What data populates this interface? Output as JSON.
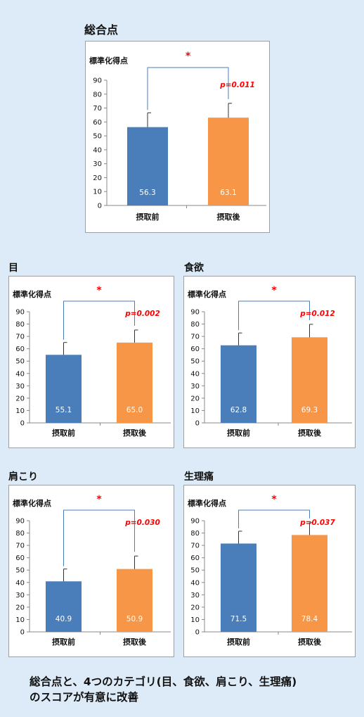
{
  "colors": {
    "before": "#4a7ebb",
    "after": "#f79646",
    "bracket": "#4a7ebb",
    "significance": "#ff0000",
    "axis": "#888888"
  },
  "chart_data": [
    {
      "type": "bar",
      "title": "総合点",
      "ylabel": "標準化得点",
      "categories": [
        "摂取前",
        "摂取後"
      ],
      "values": [
        56.3,
        63.1
      ],
      "error": [
        10.3,
        10.3
      ],
      "ylim": [
        0,
        90
      ],
      "yticks": [
        0,
        10,
        20,
        30,
        40,
        50,
        60,
        70,
        80,
        90
      ],
      "significance_mark": "*",
      "p_value": "p=0.011",
      "grid": false
    },
    {
      "type": "bar",
      "title": "目",
      "ylabel": "標準化得点",
      "categories": [
        "摂取前",
        "摂取後"
      ],
      "values": [
        55.1,
        65.0
      ],
      "error": [
        10.0,
        10.2
      ],
      "ylim": [
        0,
        90
      ],
      "yticks": [
        0,
        10,
        20,
        30,
        40,
        50,
        60,
        70,
        80,
        90
      ],
      "significance_mark": "*",
      "p_value": "p=0.002",
      "grid": false
    },
    {
      "type": "bar",
      "title": "食欲",
      "ylabel": "標準化得点",
      "categories": [
        "摂取前",
        "摂取後"
      ],
      "values": [
        62.8,
        69.3
      ],
      "error": [
        10.0,
        10.5
      ],
      "ylim": [
        0,
        90
      ],
      "yticks": [
        0,
        10,
        20,
        30,
        40,
        50,
        60,
        70,
        80,
        90
      ],
      "significance_mark": "*",
      "p_value": "p=0.012",
      "grid": false
    },
    {
      "type": "bar",
      "title": "肩こり",
      "ylabel": "標準化得点",
      "categories": [
        "摂取前",
        "摂取後"
      ],
      "values": [
        40.9,
        50.9
      ],
      "error": [
        10.0,
        10.5
      ],
      "ylim": [
        0,
        90
      ],
      "yticks": [
        0,
        10,
        20,
        30,
        40,
        50,
        60,
        70,
        80,
        90
      ],
      "significance_mark": "*",
      "p_value": "p=0.030",
      "grid": false
    },
    {
      "type": "bar",
      "title": "生理痛",
      "ylabel": "標準化得点",
      "categories": [
        "摂取前",
        "摂取後"
      ],
      "values": [
        71.5,
        78.4
      ],
      "error": [
        10.0,
        10.0
      ],
      "ylim": [
        0,
        90
      ],
      "yticks": [
        0,
        10,
        20,
        30,
        40,
        50,
        60,
        70,
        80,
        90
      ],
      "significance_mark": "*",
      "p_value": "p=0.037",
      "grid": false
    }
  ],
  "footer": {
    "line1": "総合点と、4つのカテゴリ(目、食欲、肩こり、生理痛)",
    "line2": "のスコアが有意に改善"
  }
}
